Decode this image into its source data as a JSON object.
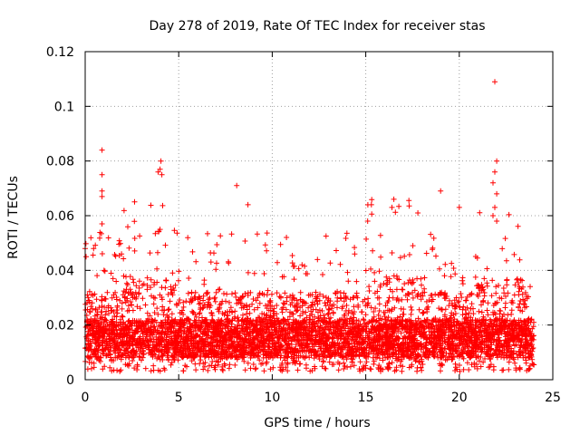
{
  "chart_data": {
    "type": "scatter",
    "title": "Day 278 of 2019, Rate Of TEC Index for receiver stas",
    "xlabel": "GPS time / hours",
    "ylabel": "ROTI / TECUs",
    "xlim": [
      0,
      25
    ],
    "ylim": [
      0,
      0.12
    ],
    "xticks": [
      0,
      5,
      10,
      15,
      20,
      25
    ],
    "xtick_labels": [
      "0",
      "5",
      "10",
      "15",
      "20",
      "25"
    ],
    "yticks": [
      0,
      0.02,
      0.04,
      0.06,
      0.08,
      0.1,
      0.12
    ],
    "ytick_labels": [
      "0",
      "0.02",
      "0.04",
      "0.06",
      "0.08",
      "0.1",
      "0.12"
    ],
    "grid": true,
    "marker": "+",
    "color": "#ff0000",
    "series": [
      {
        "name": "ROTI",
        "x_range": [
          0,
          24
        ],
        "band": {
          "typical_low": 0.008,
          "typical_high": 0.022,
          "max_low": 0.003
        },
        "notable_points": [
          {
            "x": 0.0,
            "y": 0.048
          },
          {
            "x": 0.05,
            "y": 0.045
          },
          {
            "x": 0.9,
            "y": 0.084
          },
          {
            "x": 0.9,
            "y": 0.075
          },
          {
            "x": 0.9,
            "y": 0.069
          },
          {
            "x": 0.9,
            "y": 0.067
          },
          {
            "x": 0.9,
            "y": 0.057
          },
          {
            "x": 4.05,
            "y": 0.08
          },
          {
            "x": 4.0,
            "y": 0.077
          },
          {
            "x": 3.9,
            "y": 0.076
          },
          {
            "x": 4.1,
            "y": 0.075
          },
          {
            "x": 4.0,
            "y": 0.055
          },
          {
            "x": 8.1,
            "y": 0.071
          },
          {
            "x": 8.7,
            "y": 0.064
          },
          {
            "x": 15.3,
            "y": 0.064
          },
          {
            "x": 15.1,
            "y": 0.058
          },
          {
            "x": 16.5,
            "y": 0.066
          },
          {
            "x": 16.4,
            "y": 0.063
          },
          {
            "x": 19.0,
            "y": 0.069
          },
          {
            "x": 20.0,
            "y": 0.063
          },
          {
            "x": 21.9,
            "y": 0.109
          },
          {
            "x": 22.0,
            "y": 0.08
          },
          {
            "x": 21.9,
            "y": 0.076
          },
          {
            "x": 21.8,
            "y": 0.072
          },
          {
            "x": 22.0,
            "y": 0.068
          },
          {
            "x": 21.9,
            "y": 0.063
          },
          {
            "x": 21.8,
            "y": 0.06
          },
          {
            "x": 22.0,
            "y": 0.058
          }
        ]
      }
    ]
  }
}
